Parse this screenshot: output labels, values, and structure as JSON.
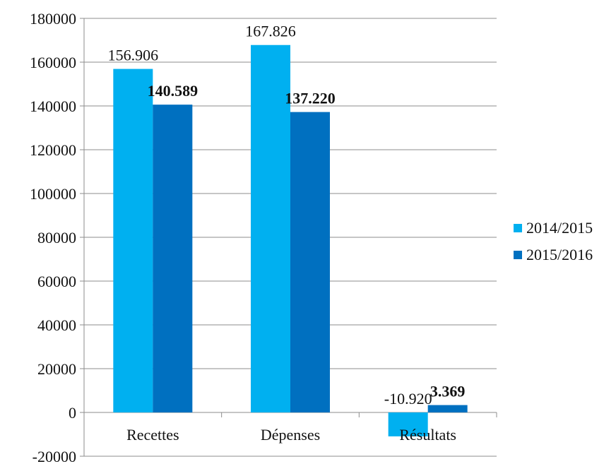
{
  "chart_data": {
    "type": "bar",
    "categories": [
      "Recettes",
      "Dépenses",
      "Résultats"
    ],
    "series": [
      {
        "name": "2014/2015",
        "values": [
          156906,
          167826,
          -10920
        ],
        "labels": [
          "156.906",
          "167.826",
          "-10.920"
        ],
        "color": "#00B0F0",
        "label_bold": false
      },
      {
        "name": "2015/2016",
        "values": [
          140589,
          137220,
          3369
        ],
        "labels": [
          "140.589",
          "137.220",
          "3.369"
        ],
        "color": "#0070C0",
        "label_bold": true
      }
    ],
    "ylim": [
      -20000,
      180000
    ],
    "yticks": [
      -20000,
      0,
      20000,
      40000,
      60000,
      80000,
      100000,
      120000,
      140000,
      160000,
      180000
    ],
    "ytick_labels": [
      "-20000",
      "0",
      "20000",
      "40000",
      "60000",
      "80000",
      "100000",
      "120000",
      "140000",
      "160000",
      "180000"
    ],
    "grid": true,
    "legend_position": "right",
    "title": "",
    "xlabel": "",
    "ylabel": ""
  }
}
